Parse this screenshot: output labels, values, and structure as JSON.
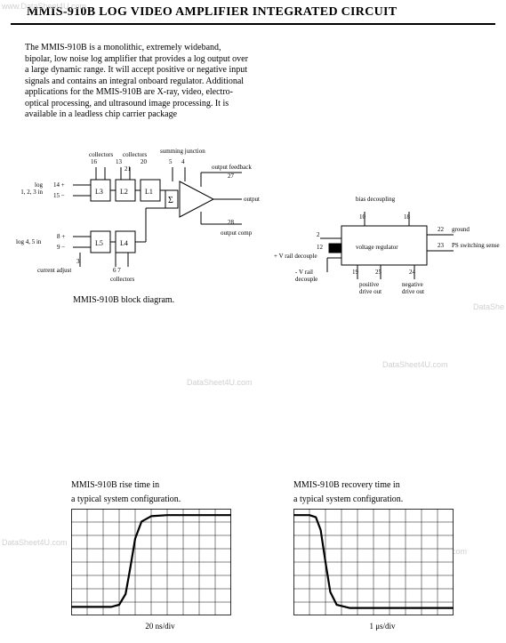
{
  "title": "MMIS-910B LOG VIDEO AMPLIFIER INTEGRATED CIRCUIT",
  "desc": "The MMIS-910B is a monolithic, extremely wideband, bipolar, low noise log amplifier that provides a log output over a large dynamic range. It will accept positive or negative input signals and contains an integral onboard regulator.  Additional applications for the MMIS-910B are X-ray, video, electro-optical processing, and ultrasound image processing.  It is available in a leadless chip carrier package",
  "block": {
    "top_labels": [
      "collectors",
      "collectors",
      "summing junction"
    ],
    "pins_top": [
      "16",
      "13",
      "21",
      "20",
      "5",
      "4"
    ],
    "log_in_label": "log\n1, 2, 3 in",
    "log_in_pins": [
      "14 +",
      "15 −"
    ],
    "log45_label": "log 4, 5 in",
    "log45_pins": [
      "8 +",
      "9 −"
    ],
    "stages_top": [
      "L3",
      "L2",
      "L1"
    ],
    "stages_bot": [
      "L5",
      "L4"
    ],
    "sigma": "Σ",
    "out_feedback": "output feedback",
    "out_feedback_pin": "27",
    "output": "output",
    "output_comp": "output comp",
    "output_comp_pin": "28",
    "current_adjust": "current adjust",
    "current_adjust_pin": "3",
    "collectors_bot": "collectors",
    "collectors_bot_pins": "6  7",
    "caption": "MMIS-910B block diagram."
  },
  "reg": {
    "title": "voltage regulator",
    "bias": "bias decoupling",
    "pin10": "10",
    "pin18": "18",
    "pin22": "22",
    "ground": "ground",
    "pin23": "23",
    "ps": "PS switching sense",
    "pin2": "2",
    "pin12": "12",
    "prail": "+ V rail decouple",
    "nrail": "- V rail\ndecouple",
    "pin19": "19",
    "pin25": "25",
    "pin24": "24",
    "pos_drive": "positive\ndrive out",
    "neg_drive": "negative\ndrive out"
  },
  "watermarks": {
    "tl": "www.DataSheet4U.com",
    "ml": "DataSheet4U.com",
    "mr": "DataShe",
    "mc": "DataSheet4U.com",
    "mc2": "DataSheet4U.com",
    "br": "www.DataSheet4U.com"
  },
  "chart1": {
    "caption_l1": "MMIS-910B rise time in",
    "caption_l2": "a typical system configuration.",
    "xlabel": "20 ns/div",
    "grid": {
      "cols": 10,
      "rows": 8,
      "stroke": "#000000",
      "stroke_width": 0.8,
      "bg": "#ffffff"
    },
    "curve": {
      "stroke": "#000000",
      "stroke_width": 2.2,
      "points": [
        [
          0,
          0.92
        ],
        [
          0.25,
          0.92
        ],
        [
          0.3,
          0.9
        ],
        [
          0.34,
          0.8
        ],
        [
          0.37,
          0.55
        ],
        [
          0.4,
          0.28
        ],
        [
          0.44,
          0.12
        ],
        [
          0.5,
          0.07
        ],
        [
          0.6,
          0.06
        ],
        [
          0.8,
          0.06
        ],
        [
          1.0,
          0.06
        ]
      ]
    }
  },
  "chart2": {
    "caption_l1": "MMIS-910B recovery time in",
    "caption_l2": "a typical system configuration.",
    "xlabel": "1 μs/div",
    "grid": {
      "cols": 10,
      "rows": 8,
      "stroke": "#000000",
      "stroke_width": 0.8,
      "bg": "#ffffff"
    },
    "curve": {
      "stroke": "#000000",
      "stroke_width": 2.2,
      "points": [
        [
          0,
          0.06
        ],
        [
          0.1,
          0.06
        ],
        [
          0.14,
          0.08
        ],
        [
          0.17,
          0.2
        ],
        [
          0.2,
          0.5
        ],
        [
          0.23,
          0.78
        ],
        [
          0.27,
          0.9
        ],
        [
          0.35,
          0.93
        ],
        [
          0.6,
          0.93
        ],
        [
          1.0,
          0.93
        ]
      ]
    }
  }
}
